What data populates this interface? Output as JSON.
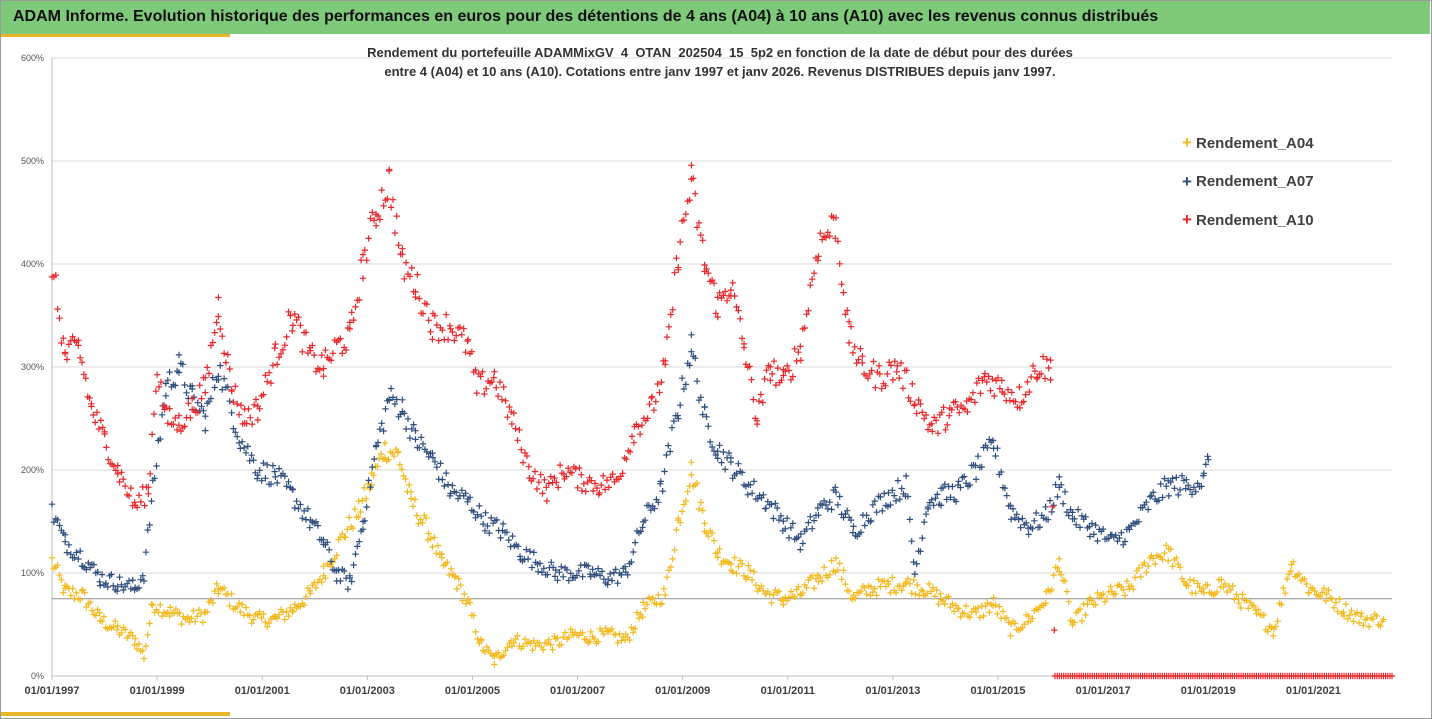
{
  "banner": {
    "title": "ADAM Informe. Evolution historique des performances en euros pour des détentions de 4 ans (A04) à 10 ans (A10) avec les revenus connus distribués",
    "color": "#7fc97a",
    "accent_color": "#e8b828"
  },
  "chart_data": {
    "type": "scatter",
    "title_lines": [
      "Rendement du portefeuille ADAMMixGV_4_OTAN_202504_15_5p2  en fonction de la date de début pour des durées",
      "entre 4 (A04) et 10 ans (A10). Cotations entre janv 1997 et janv 2026. Revenus DISTRIBUES depuis janv 1997."
    ],
    "marker": "+",
    "grid": "horizontal",
    "legend_position": "right",
    "x_axis": {
      "type": "date",
      "range": [
        "1997-01-01",
        "2022-06-30"
      ],
      "tick_labels": [
        "01/01/1997",
        "01/01/1999",
        "01/01/2001",
        "01/01/2003",
        "01/01/2005",
        "01/01/2007",
        "01/01/2009",
        "01/01/2011",
        "01/01/2013",
        "01/01/2015",
        "01/01/2017",
        "01/01/2019",
        "01/01/2021"
      ]
    },
    "y_axis": {
      "range": [
        0,
        600
      ],
      "unit": "%",
      "tick_labels": [
        "0%",
        "100%",
        "200%",
        "300%",
        "400%",
        "500%",
        "600%"
      ]
    },
    "reference_line_y": 75,
    "series": [
      {
        "name": "Rendement_A04",
        "color": "#f2b81c",
        "points": [
          [
            "1997-01-01",
            112
          ],
          [
            "1997-04-01",
            82
          ],
          [
            "1997-08-01",
            78
          ],
          [
            "1997-12-01",
            55
          ],
          [
            "1998-04-01",
            45
          ],
          [
            "1998-08-01",
            35
          ],
          [
            "1998-10-01",
            20
          ],
          [
            "1998-12-01",
            70
          ],
          [
            "1999-04-01",
            62
          ],
          [
            "1999-08-01",
            55
          ],
          [
            "1999-12-01",
            60
          ],
          [
            "2000-03-01",
            85
          ],
          [
            "2000-08-01",
            65
          ],
          [
            "2000-12-01",
            55
          ],
          [
            "2001-04-01",
            55
          ],
          [
            "2001-08-01",
            65
          ],
          [
            "2001-12-01",
            80
          ],
          [
            "2002-03-01",
            100
          ],
          [
            "2002-08-01",
            140
          ],
          [
            "2002-11-01",
            160
          ],
          [
            "2003-02-01",
            190
          ],
          [
            "2003-05-01",
            220
          ],
          [
            "2003-08-01",
            215
          ],
          [
            "2003-11-01",
            170
          ],
          [
            "2004-03-01",
            140
          ],
          [
            "2004-06-01",
            110
          ],
          [
            "2004-09-01",
            95
          ],
          [
            "2004-12-01",
            70
          ],
          [
            "2005-03-01",
            30
          ],
          [
            "2005-06-01",
            15
          ],
          [
            "2005-10-01",
            35
          ],
          [
            "2006-03-01",
            30
          ],
          [
            "2006-08-01",
            32
          ],
          [
            "2006-12-01",
            40
          ],
          [
            "2007-04-01",
            38
          ],
          [
            "2007-08-01",
            40
          ],
          [
            "2007-12-01",
            35
          ],
          [
            "2008-04-01",
            65
          ],
          [
            "2008-09-01",
            80
          ],
          [
            "2008-12-01",
            150
          ],
          [
            "2009-03-01",
            200
          ],
          [
            "2009-06-01",
            150
          ],
          [
            "2009-09-01",
            120
          ],
          [
            "2009-12-01",
            110
          ],
          [
            "2010-04-01",
            100
          ],
          [
            "2010-08-01",
            80
          ],
          [
            "2010-12-01",
            75
          ],
          [
            "2011-04-01",
            80
          ],
          [
            "2011-08-01",
            95
          ],
          [
            "2011-12-01",
            110
          ],
          [
            "2012-04-01",
            75
          ],
          [
            "2012-08-01",
            85
          ],
          [
            "2012-12-01",
            88
          ],
          [
            "2013-04-01",
            90
          ],
          [
            "2013-08-01",
            85
          ],
          [
            "2013-12-01",
            75
          ],
          [
            "2014-04-01",
            65
          ],
          [
            "2014-08-01",
            60
          ],
          [
            "2014-12-01",
            70
          ],
          [
            "2015-04-01",
            45
          ],
          [
            "2015-08-01",
            55
          ],
          [
            "2015-12-01",
            75
          ],
          [
            "2016-03-01",
            110
          ],
          [
            "2016-06-01",
            50
          ],
          [
            "2016-10-01",
            70
          ],
          [
            "2017-03-01",
            80
          ],
          [
            "2017-07-01",
            85
          ],
          [
            "2017-12-01",
            115
          ],
          [
            "2018-04-01",
            120
          ],
          [
            "2018-08-01",
            90
          ],
          [
            "2018-12-01",
            80
          ],
          [
            "2019-04-01",
            90
          ],
          [
            "2019-08-01",
            75
          ],
          [
            "2019-12-01",
            60
          ],
          [
            "2020-04-01",
            45
          ],
          [
            "2020-08-01",
            110
          ],
          [
            "2020-12-01",
            85
          ],
          [
            "2021-04-01",
            78
          ],
          [
            "2021-08-01",
            65
          ],
          [
            "2021-12-01",
            55
          ],
          [
            "2022-05-01",
            55
          ]
        ]
      },
      {
        "name": "Rendement_A07",
        "color": "#2e4e7e",
        "points": [
          [
            "1997-01-01",
            160
          ],
          [
            "1997-04-01",
            130
          ],
          [
            "1997-08-01",
            115
          ],
          [
            "1997-12-01",
            95
          ],
          [
            "1998-04-01",
            90
          ],
          [
            "1998-08-01",
            85
          ],
          [
            "1998-10-01",
            100
          ],
          [
            "1998-12-01",
            180
          ],
          [
            "1999-03-01",
            280
          ],
          [
            "1999-06-01",
            300
          ],
          [
            "1999-09-01",
            270
          ],
          [
            "1999-12-01",
            250
          ],
          [
            "2000-03-01",
            300
          ],
          [
            "2000-08-01",
            230
          ],
          [
            "2000-12-01",
            200
          ],
          [
            "2001-04-01",
            195
          ],
          [
            "2001-08-01",
            175
          ],
          [
            "2001-12-01",
            150
          ],
          [
            "2002-03-01",
            130
          ],
          [
            "2002-06-01",
            100
          ],
          [
            "2002-09-01",
            90
          ],
          [
            "2002-12-01",
            150
          ],
          [
            "2003-03-01",
            220
          ],
          [
            "2003-06-01",
            270
          ],
          [
            "2003-09-01",
            260
          ],
          [
            "2003-12-01",
            230
          ],
          [
            "2004-04-01",
            210
          ],
          [
            "2004-08-01",
            180
          ],
          [
            "2004-12-01",
            170
          ],
          [
            "2005-04-01",
            150
          ],
          [
            "2005-08-01",
            140
          ],
          [
            "2005-12-01",
            120
          ],
          [
            "2006-04-01",
            110
          ],
          [
            "2006-08-01",
            100
          ],
          [
            "2006-12-01",
            100
          ],
          [
            "2007-04-01",
            100
          ],
          [
            "2007-08-01",
            95
          ],
          [
            "2007-12-01",
            100
          ],
          [
            "2008-04-01",
            150
          ],
          [
            "2008-08-01",
            180
          ],
          [
            "2008-12-01",
            260
          ],
          [
            "2009-03-01",
            320
          ],
          [
            "2009-06-01",
            250
          ],
          [
            "2009-09-01",
            220
          ],
          [
            "2009-12-01",
            205
          ],
          [
            "2010-04-01",
            185
          ],
          [
            "2010-08-01",
            170
          ],
          [
            "2010-12-01",
            150
          ],
          [
            "2011-04-01",
            130
          ],
          [
            "2011-08-01",
            160
          ],
          [
            "2011-12-01",
            175
          ],
          [
            "2012-04-01",
            140
          ],
          [
            "2012-08-01",
            160
          ],
          [
            "2012-12-01",
            175
          ],
          [
            "2013-04-01",
            185
          ],
          [
            "2013-06-01",
            100
          ],
          [
            "2013-09-01",
            170
          ],
          [
            "2013-12-01",
            175
          ],
          [
            "2014-04-01",
            180
          ],
          [
            "2014-08-01",
            200
          ],
          [
            "2014-12-01",
            225
          ],
          [
            "2015-04-01",
            160
          ],
          [
            "2015-08-01",
            145
          ],
          [
            "2015-12-01",
            155
          ],
          [
            "2016-03-01",
            185
          ],
          [
            "2016-06-01",
            155
          ],
          [
            "2016-10-01",
            145
          ],
          [
            "2017-03-01",
            130
          ],
          [
            "2017-07-01",
            140
          ],
          [
            "2017-12-01",
            170
          ],
          [
            "2018-04-01",
            185
          ],
          [
            "2018-08-01",
            185
          ],
          [
            "2018-12-01",
            190
          ],
          [
            "2019-01-01",
            210
          ]
        ]
      },
      {
        "name": "Rendement_A10",
        "color": "#e8262a",
        "points": [
          [
            "1997-01-01",
            400
          ],
          [
            "1997-04-01",
            310
          ],
          [
            "1997-07-01",
            320
          ],
          [
            "1997-10-01",
            260
          ],
          [
            "1998-01-01",
            230
          ],
          [
            "1998-04-01",
            200
          ],
          [
            "1998-08-01",
            165
          ],
          [
            "1998-11-01",
            180
          ],
          [
            "1999-01-01",
            300
          ],
          [
            "1999-03-01",
            250
          ],
          [
            "1999-06-01",
            245
          ],
          [
            "1999-09-01",
            260
          ],
          [
            "1999-12-01",
            280
          ],
          [
            "2000-03-01",
            360
          ],
          [
            "2000-06-01",
            280
          ],
          [
            "2000-09-01",
            250
          ],
          [
            "2000-12-01",
            260
          ],
          [
            "2001-04-01",
            310
          ],
          [
            "2001-08-01",
            350
          ],
          [
            "2001-12-01",
            310
          ],
          [
            "2002-03-01",
            300
          ],
          [
            "2002-06-01",
            320
          ],
          [
            "2002-09-01",
            330
          ],
          [
            "2002-12-01",
            400
          ],
          [
            "2003-03-01",
            450
          ],
          [
            "2003-06-01",
            480
          ],
          [
            "2003-09-01",
            400
          ],
          [
            "2003-12-01",
            380
          ],
          [
            "2004-04-01",
            340
          ],
          [
            "2004-08-01",
            340
          ],
          [
            "2004-12-01",
            320
          ],
          [
            "2005-02-01",
            280
          ],
          [
            "2005-06-01",
            290
          ],
          [
            "2005-10-01",
            250
          ],
          [
            "2006-02-01",
            200
          ],
          [
            "2006-06-01",
            180
          ],
          [
            "2006-10-01",
            200
          ],
          [
            "2007-02-01",
            190
          ],
          [
            "2007-06-01",
            185
          ],
          [
            "2007-10-01",
            190
          ],
          [
            "2008-02-01",
            240
          ],
          [
            "2008-06-01",
            260
          ],
          [
            "2008-09-01",
            300
          ],
          [
            "2008-12-01",
            410
          ],
          [
            "2009-03-01",
            480
          ],
          [
            "2009-06-01",
            400
          ],
          [
            "2009-09-01",
            360
          ],
          [
            "2009-12-01",
            380
          ],
          [
            "2010-03-01",
            320
          ],
          [
            "2010-06-01",
            250
          ],
          [
            "2010-09-01",
            300
          ],
          [
            "2010-12-01",
            285
          ],
          [
            "2011-04-01",
            320
          ],
          [
            "2011-08-01",
            420
          ],
          [
            "2011-12-01",
            440
          ],
          [
            "2012-03-01",
            330
          ],
          [
            "2012-06-01",
            300
          ],
          [
            "2012-10-01",
            290
          ],
          [
            "2013-02-01",
            300
          ],
          [
            "2013-06-01",
            270
          ],
          [
            "2013-10-01",
            240
          ],
          [
            "2014-02-01",
            255
          ],
          [
            "2014-06-01",
            260
          ],
          [
            "2014-10-01",
            290
          ],
          [
            "2015-02-01",
            280
          ],
          [
            "2015-06-01",
            270
          ],
          [
            "2015-10-01",
            300
          ],
          [
            "2016-01-01",
            300
          ],
          [
            "2016-02-01",
            0
          ],
          [
            "2022-06-30",
            0
          ]
        ]
      }
    ]
  }
}
